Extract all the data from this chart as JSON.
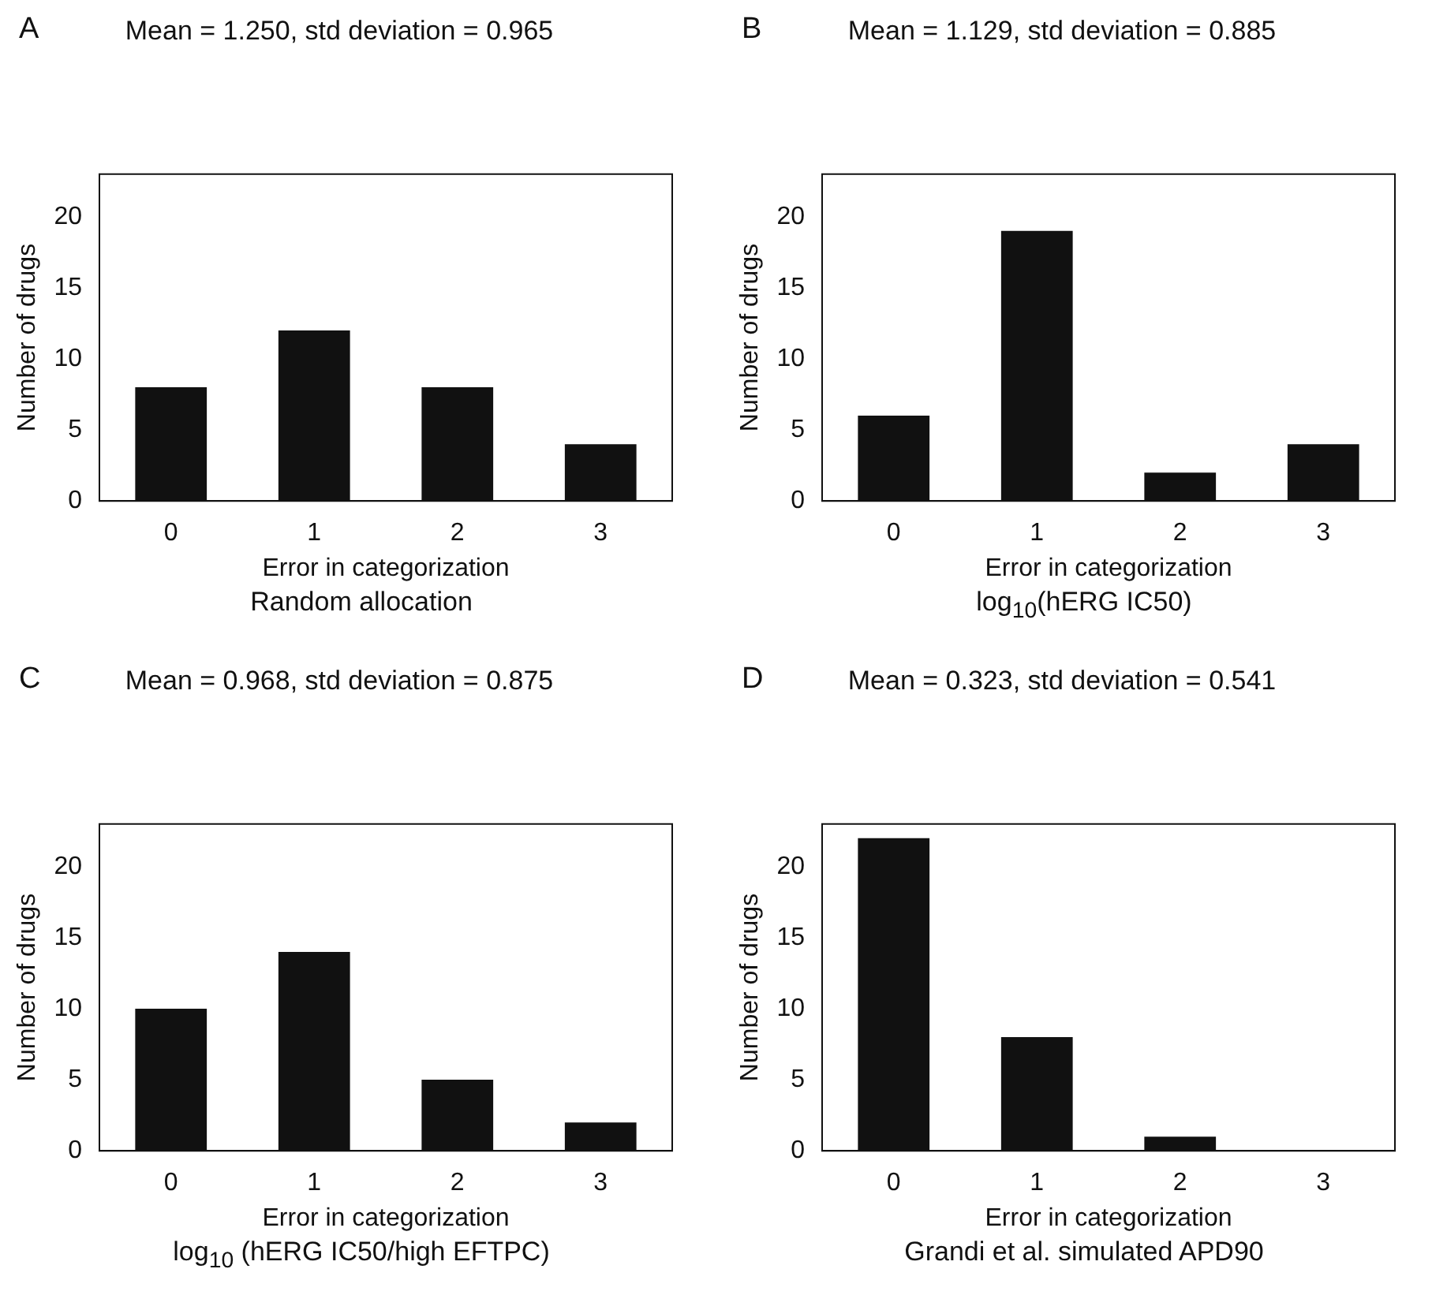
{
  "chart_data": [
    {
      "type": "bar",
      "title": "Mean = 1.250, std deviation = 0.965",
      "xlabel": "Error in categorization",
      "ylabel": "Number of drugs",
      "categories": [
        "0",
        "1",
        "2",
        "3"
      ],
      "values": [
        8,
        12,
        8,
        4
      ],
      "color": "#111111",
      "ylim": [
        0,
        23
      ],
      "yticks": [
        0,
        5,
        10,
        15,
        20
      ],
      "annotations": [
        "A",
        "Random allocation"
      ]
    },
    {
      "type": "bar",
      "title": "Mean = 1.129, std deviation = 0.885",
      "xlabel": "Error in categorization",
      "ylabel": "Number of drugs",
      "categories": [
        "0",
        "1",
        "2",
        "3"
      ],
      "values": [
        6,
        19,
        2,
        4
      ],
      "color": "#111111",
      "ylim": [
        0,
        23
      ],
      "yticks": [
        0,
        5,
        10,
        15,
        20
      ],
      "annotations": [
        "B",
        "log$_{10}$(hERG IC50)"
      ]
    },
    {
      "type": "bar",
      "title": "Mean = 0.968, std deviation = 0.875",
      "xlabel": "Error in categorization",
      "ylabel": "Number of drugs",
      "categories": [
        "0",
        "1",
        "2",
        "3"
      ],
      "values": [
        10,
        14,
        5,
        2
      ],
      "color": "#111111",
      "ylim": [
        0,
        23
      ],
      "yticks": [
        0,
        5,
        10,
        15,
        20
      ],
      "annotations": [
        "C",
        "log$_{10}$ (hERG IC50/high EFTPC)"
      ]
    },
    {
      "type": "bar",
      "title": "Mean = 0.323, std deviation = 0.541",
      "xlabel": "Error in categorization",
      "ylabel": "Number of drugs",
      "categories": [
        "0",
        "1",
        "2",
        "3"
      ],
      "values": [
        22,
        8,
        1,
        0
      ],
      "color": "#111111",
      "ylim": [
        0,
        23
      ],
      "yticks": [
        0,
        5,
        10,
        15,
        20
      ],
      "annotations": [
        "D",
        "Grandi et al. simulated APD90"
      ]
    }
  ]
}
